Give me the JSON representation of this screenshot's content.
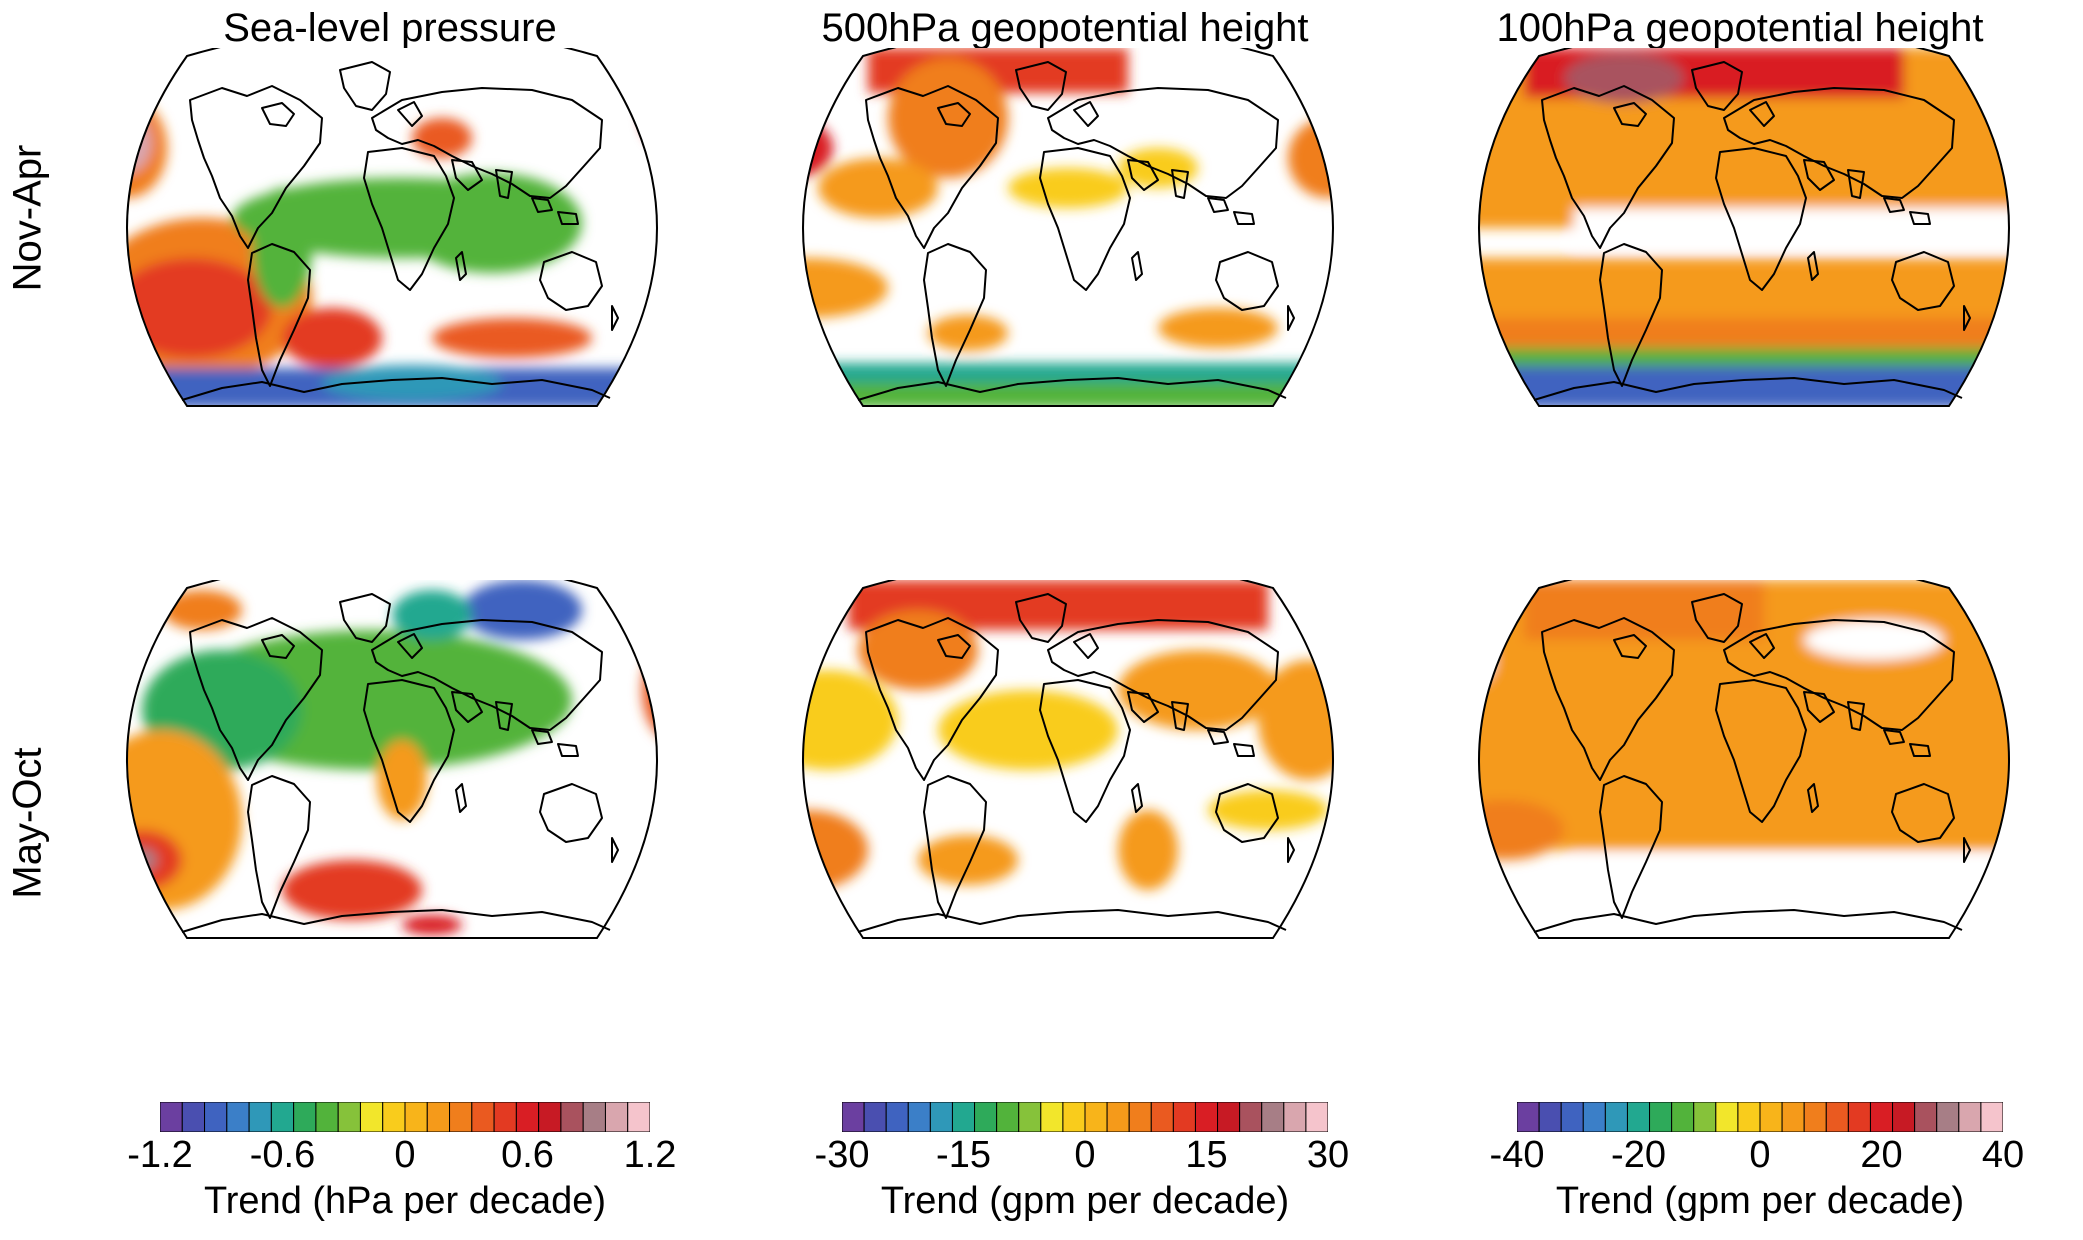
{
  "columns": [
    {
      "title": "Sea-level pressure"
    },
    {
      "title": "500hPa geopotential height"
    },
    {
      "title": "100hPa geopotential height"
    }
  ],
  "rows": [
    {
      "label": "Nov-Apr"
    },
    {
      "label": "May-Oct"
    }
  ],
  "colorbars": [
    {
      "ticks": [
        "-1.2",
        "-0.6",
        "0",
        "0.6",
        "1.2"
      ],
      "label": "Trend (hPa per decade)"
    },
    {
      "ticks": [
        "-30",
        "-15",
        "0",
        "15",
        "30"
      ],
      "label": "Trend (gpm per decade)"
    },
    {
      "ticks": [
        "-40",
        "-20",
        "0",
        "20",
        "40"
      ],
      "label": "Trend (gpm per decade)"
    }
  ],
  "palette": [
    "#6b3fa0",
    "#4a4fb0",
    "#3f63c0",
    "#3b7fc8",
    "#2f98b8",
    "#22a890",
    "#2eaa5a",
    "#52b33b",
    "#86c23a",
    "#f2e62b",
    "#f9cc1c",
    "#f8b41a",
    "#f59a1a",
    "#f07e1c",
    "#ea5a20",
    "#e33a22",
    "#d91e24",
    "#c71a24",
    "#a9525e",
    "#a77e86",
    "#d9a6ae",
    "#f5c4cc"
  ]
}
